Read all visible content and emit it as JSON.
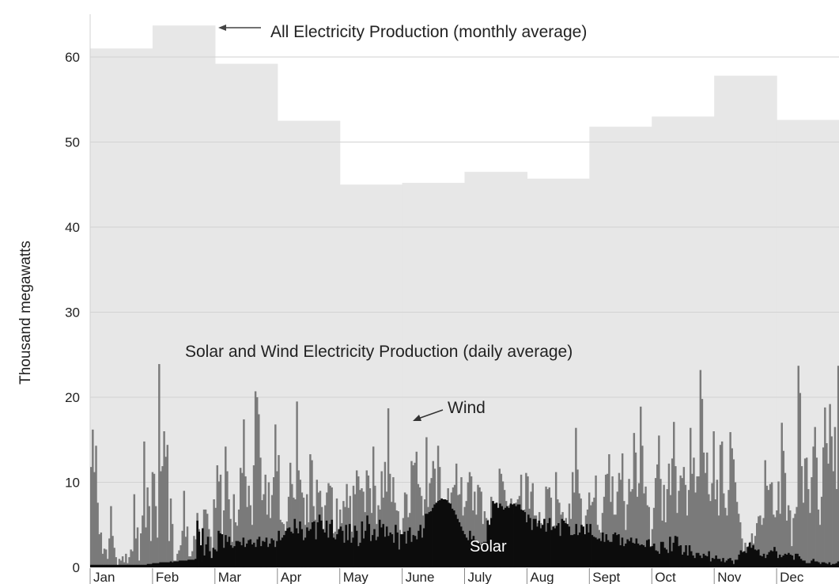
{
  "chart_data": {
    "type": "area",
    "ylabel": "Thousand megawatts",
    "ylim": [
      0,
      65
    ],
    "yticks": [
      0,
      10,
      20,
      30,
      40,
      50,
      60
    ],
    "grid": true,
    "months": [
      "Jan",
      "Feb",
      "Mar",
      "Apr",
      "May",
      "June",
      "July",
      "Aug",
      "Sept",
      "Oct",
      "Nov",
      "Dec"
    ],
    "annotations": {
      "all": "All Electricity Production (monthly average)",
      "solar_wind": "Solar and Wind Electricity Production (daily average)",
      "wind": "Wind",
      "solar": "Solar"
    },
    "series": [
      {
        "name": "All Electricity Production (monthly average)",
        "resolution": "monthly",
        "values": [
          61.0,
          63.7,
          59.2,
          52.5,
          45.0,
          45.2,
          46.5,
          45.7,
          51.8,
          53.0,
          57.8,
          52.6
        ]
      },
      {
        "name": "Wind",
        "resolution": "daily",
        "values": [
          11.8,
          16.2,
          11.2,
          14.3,
          7.6,
          3.9,
          4.1,
          1.6,
          2.2,
          2.1,
          1.0,
          3.4,
          7.2,
          3.7,
          2.3,
          1.2,
          0.1,
          1.0,
          0.8,
          1.3,
          0.6,
          1.6,
          0.5,
          1.2,
          2.1,
          1.9,
          8.6,
          3.4,
          4.7,
          0.8,
          4.0,
          6.1,
          14.8,
          4.7,
          9.4,
          7.2,
          3.1,
          11.2,
          11.0,
          7.2,
          3.5,
          23.9,
          11.3,
          11.9,
          16.0,
          13.0,
          14.4,
          3.1,
          8.1,
          5.1,
          0.8,
          0.8,
          1.6,
          2.0,
          2.6,
          4.3,
          9.0,
          3.6,
          4.8,
          1.3,
          1.3,
          1.9,
          3.7,
          3.3,
          6.4,
          4.5,
          1.6,
          0.6,
          6.8,
          6.8,
          6.3,
          4.5,
          3.6,
          0.9,
          8.0,
          7.0,
          12.0,
          10.1,
          10.9,
          3.4,
          6.7,
          14.2,
          11.3,
          8.0,
          5.7,
          3.0,
          8.6,
          5.3,
          4.9,
          6.8,
          11.7,
          11.1,
          17.4,
          10.7,
          7.1,
          9.6,
          7.3,
          5.0,
          12.0,
          20.7,
          20.0,
          18.0,
          12.9,
          7.9,
          8.6,
          10.9,
          6.2,
          10.0,
          5.8,
          8.5,
          10.6,
          16.8,
          11.3,
          13.2,
          5.6,
          5.3,
          5.1,
          3.5,
          5.4,
          8.3,
          12.3,
          9.8,
          8.2,
          8.0,
          19.5,
          11.4,
          10.3,
          8.8,
          8.2,
          5.0,
          8.6,
          5.3,
          13.3,
          12.6,
          7.2,
          5.6,
          10.3,
          8.8,
          9.0,
          7.1,
          3.5,
          7.3,
          8.8,
          9.9,
          9.6,
          9.4,
          4.0,
          4.2,
          8.1,
          4.3,
          6.8,
          5.2,
          7.8,
          7.1,
          9.8,
          7.0,
          8.4,
          4.2,
          9.6,
          8.6,
          11.4,
          10.7,
          9.1,
          9.3,
          8.9,
          6.5,
          11.4,
          10.8,
          9.3,
          6.4,
          14.2,
          9.6,
          5.1,
          7.3,
          6.8,
          11.3,
          8.2,
          12.4,
          8.9,
          18.7,
          11.0,
          7.7,
          10.6,
          7.6,
          6.7,
          6.6,
          4.4,
          3.4,
          5.8,
          8.8,
          8.6,
          5.9,
          6.4,
          12.5,
          12.0,
          12.3,
          13.6,
          9.8,
          9.4,
          8.4,
          6.1,
          8.0,
          15.3,
          7.1,
          9.9,
          10.5,
          12.5,
          11.6,
          4.0,
          14.3,
          11.8,
          7.8,
          7.9,
          5.8,
          5.8,
          9.3,
          6.0,
          8.8,
          9.4,
          9.7,
          12.2,
          8.5,
          8.6,
          10.6,
          6.1,
          7.1,
          7.8,
          10.0,
          11.2,
          10.7,
          6.7,
          8.9,
          6.2,
          9.7,
          9.4,
          8.9,
          5.1,
          6.6,
          5.8,
          5.6,
          5.0,
          8.3,
          6.5,
          6.3,
          6.5,
          6.1,
          11.6,
          11.0,
          10.1,
          9.1,
          7.8,
          6.4,
          7.3,
          8.1,
          6.2,
          6.2,
          7.6,
          8.0,
          8.4,
          10.9,
          6.6,
          6.8,
          11.1,
          10.7,
          6.9,
          8.9,
          9.9,
          6.1,
          6.1,
          5.2,
          6.5,
          5.2,
          4.8,
          5.7,
          9.5,
          9.2,
          9.4,
          8.2,
          4.1,
          4.9,
          11.2,
          8.0,
          7.6,
          6.2,
          6.5,
          5.0,
          5.8,
          4.5,
          7.5,
          5.7,
          11.2,
          8.8,
          16.4,
          11.5,
          8.7,
          8.1,
          4.5,
          2.9,
          6.1,
          6.8,
          8.8,
          7.3,
          7.7,
          8.2,
          10.8,
          5.0,
          4.4,
          4.1,
          6.4,
          8.3,
          10.9,
          11.0,
          13.3,
          7.7,
          10.7,
          6.2,
          6.2,
          8.9,
          11.1,
          10.3,
          13.4,
          7.8,
          4.4,
          7.4,
          10.4,
          8.9,
          9.2,
          15.8,
          13.5,
          8.3,
          9.9,
          18.9,
          14.3,
          8.7,
          9.5,
          7.3,
          7.1,
          2.5,
          4.5,
          7.0,
          10.5,
          12.1,
          15.5,
          10.4,
          5.5,
          9.7,
          5.3,
          9.2,
          12.2,
          8.5,
          12.8,
          17.1,
          11.9,
          6.4,
          9.0,
          10.8,
          10.5,
          11.8,
          9.7,
          6.1,
          9.1,
          16.4,
          11.0,
          12.9,
          8.8,
          10.7,
          10.7,
          23.2,
          19.8,
          13.5,
          11.1,
          13.5,
          8.6,
          7.8,
          9.9,
          16.0,
          8.0,
          10.3,
          6.1,
          14.4,
          14.8,
          8.7,
          7.0,
          6.1,
          9.1,
          15.9,
          14.0,
          12.7,
          10.0,
          7.7,
          6.3,
          5.3,
          3.4,
          1.8,
          2.9,
          2.4,
          2.5,
          3.0,
          4.0,
          2.8,
          3.7,
          5.2,
          6.0,
          6.1,
          5.0,
          5.8,
          12.6,
          9.6,
          9.1,
          9.8,
          10.0,
          6.2,
          5.9,
          6.7,
          10.1,
          6.3,
          17.0,
          13.7,
          11.1,
          5.5,
          7.3,
          6.7,
          2.5,
          5.8,
          6.3,
          7.1,
          23.7,
          20.5,
          11.9,
          7.6,
          12.8,
          12.9,
          9.2,
          6.4,
          10.6,
          14.2,
          16.5,
          12.9,
          6.8,
          5.0,
          8.3,
          14.1,
          18.8,
          14.6,
          12.2,
          19.2,
          15.4,
          11.3,
          16.5,
          9.2,
          23.7
        ]
      },
      {
        "name": "Solar",
        "resolution": "daily",
        "values": [
          0.3,
          0.3,
          0.3,
          0.3,
          0.3,
          0.3,
          0.3,
          0.3,
          0.3,
          0.3,
          0.3,
          0.3,
          0.3,
          0.3,
          0.3,
          0.3,
          0.3,
          0.3,
          0.3,
          0.3,
          0.3,
          0.3,
          0.3,
          0.3,
          0.3,
          0.3,
          0.3,
          0.3,
          0.3,
          0.3,
          0.3,
          0.3,
          0.4,
          0.4,
          0.4,
          0.5,
          0.5,
          0.5,
          0.5,
          0.6,
          0.6,
          0.6,
          0.6,
          0.6,
          0.6,
          0.7,
          0.6,
          0.7,
          0.7,
          0.7,
          0.8,
          0.8,
          0.8,
          0.8,
          0.8,
          0.9,
          0.9,
          0.9,
          0.9,
          1.0,
          5.5,
          4.2,
          2.6,
          4.6,
          1.4,
          2.7,
          3.6,
          1.9,
          1.1,
          2.3,
          2.1,
          1.9,
          4.3,
          4.0,
          3.9,
          2.3,
          3.8,
          3.0,
          3.6,
          2.6,
          2.3,
          2.5,
          3.1,
          3.1,
          3.0,
          2.6,
          3.5,
          2.4,
          2.8,
          3.2,
          3.3,
          2.7,
          2.9,
          2.4,
          3.3,
          3.6,
          2.5,
          3.1,
          3.0,
          3.5,
          2.4,
          2.8,
          3.4,
          3.2,
          2.4,
          3.1,
          4.3,
          3.2,
          3.5,
          3.8,
          4.3,
          4.6,
          4.7,
          4.2,
          4.0,
          5.7,
          4.6,
          4.0,
          5.4,
          4.5,
          3.2,
          3.5,
          4.7,
          4.3,
          4.5,
          5.3,
          5.4,
          3.3,
          5.3,
          6.2,
          5.5,
          4.5,
          4.1,
          5.5,
          3.5,
          5.1,
          5.6,
          3.5,
          3.3,
          3.9,
          4.5,
          4.8,
          4.3,
          2.9,
          5.0,
          3.2,
          5.1,
          2.9,
          3.5,
          4.9,
          4.3,
          2.5,
          2.9,
          5.4,
          3.4,
          4.3,
          6.1,
          5.1,
          3.1,
          3.8,
          4.5,
          3.2,
          3.6,
          5.6,
          4.7,
          5.1,
          3.6,
          4.8,
          3.7,
          4.1,
          3.9,
          2.9,
          5.0,
          4.1,
          2.1,
          3.9,
          3.9,
          4.2,
          2.8,
          4.3,
          4.7,
          3.0,
          3.8,
          3.7,
          3.3,
          4.3,
          5.0,
          3.5,
          4.6,
          6.3,
          6.3,
          6.5,
          6.6,
          7.0,
          7.4,
          7.6,
          7.8,
          7.9,
          8.1,
          8.0,
          8.0,
          7.9,
          7.6,
          7.5,
          6.9,
          6.7,
          6.2,
          5.7,
          5.3,
          4.8,
          4.3,
          3.9,
          3.5,
          3.2,
          4.3,
          3.3,
          3.7,
          3.2,
          2.9,
          2.9,
          2.6,
          2.9,
          3.0,
          3.0,
          5.5,
          5.0,
          5.8,
          7.8,
          7.5,
          7.6,
          7.0,
          7.5,
          7.2,
          6.8,
          7.0,
          7.2,
          7.0,
          7.5,
          7.4,
          7.5,
          7.2,
          7.4,
          7.4,
          6.8,
          6.7,
          6.5,
          5.3,
          6.2,
          5.8,
          4.4,
          5.7,
          5.7,
          4.8,
          5.5,
          4.6,
          5.0,
          5.7,
          4.2,
          5.2,
          5.8,
          4.4,
          4.8,
          4.6,
          4.9,
          5.2,
          3.7,
          5.7,
          5.5,
          5.2,
          5.1,
          4.8,
          3.8,
          3.8,
          3.9,
          5.1,
          3.8,
          4.1,
          5.0,
          4.8,
          3.9,
          5.1,
          4.1,
          5.1,
          3.8,
          3.6,
          3.5,
          3.3,
          3.4,
          3.1,
          4.1,
          3.0,
          3.9,
          3.2,
          3.0,
          3.0,
          3.9,
          4.1,
          3.8,
          3.9,
          2.6,
          3.5,
          2.5,
          2.8,
          3.3,
          3.1,
          3.5,
          2.9,
          2.8,
          3.4,
          2.8,
          2.6,
          2.7,
          2.6,
          2.4,
          3.2,
          3.3,
          2.4,
          2.5,
          2.8,
          2.0,
          1.9,
          1.6,
          3.0,
          3.0,
          2.3,
          2.1,
          1.7,
          3.6,
          1.9,
          2.9,
          3.7,
          3.6,
          2.5,
          2.6,
          1.5,
          1.8,
          2.6,
          1.4,
          2.6,
          1.9,
          1.4,
          1.1,
          1.7,
          1.7,
          1.4,
          1.1,
          1.6,
          1.4,
          1.3,
          1.9,
          0.7,
          1.1,
          1.0,
          1.4,
          1.0,
          1.0,
          0.7,
          1.1,
          0.6,
          0.8,
          1.0,
          1.1,
          0.8,
          0.4,
          0.9,
          0.9,
          1.5,
          2.0,
          1.8,
          1.9,
          1.7,
          2.4,
          2.9,
          2.3,
          2.6,
          2.1,
          2.0,
          2.1,
          1.4,
          1.3,
          1.6,
          1.1,
          1.5,
          1.8,
          2.0,
          1.9,
          2.4,
          1.9,
          1.1,
          1.5,
          1.2,
          1.4,
          1.6,
          1.5,
          1.7,
          1.5,
          1.4,
          0.9,
          1.6,
          1.6,
          1.3,
          1.0,
          0.8,
          0.8,
          0.5,
          0.5,
          0.5,
          0.8,
          1.0,
          0.7,
          0.7,
          0.6,
          0.4,
          0.6,
          0.6,
          0.5,
          0.4,
          0.6,
          0.3,
          0.4,
          0.4,
          0.5,
          0.7
        ]
      }
    ]
  }
}
